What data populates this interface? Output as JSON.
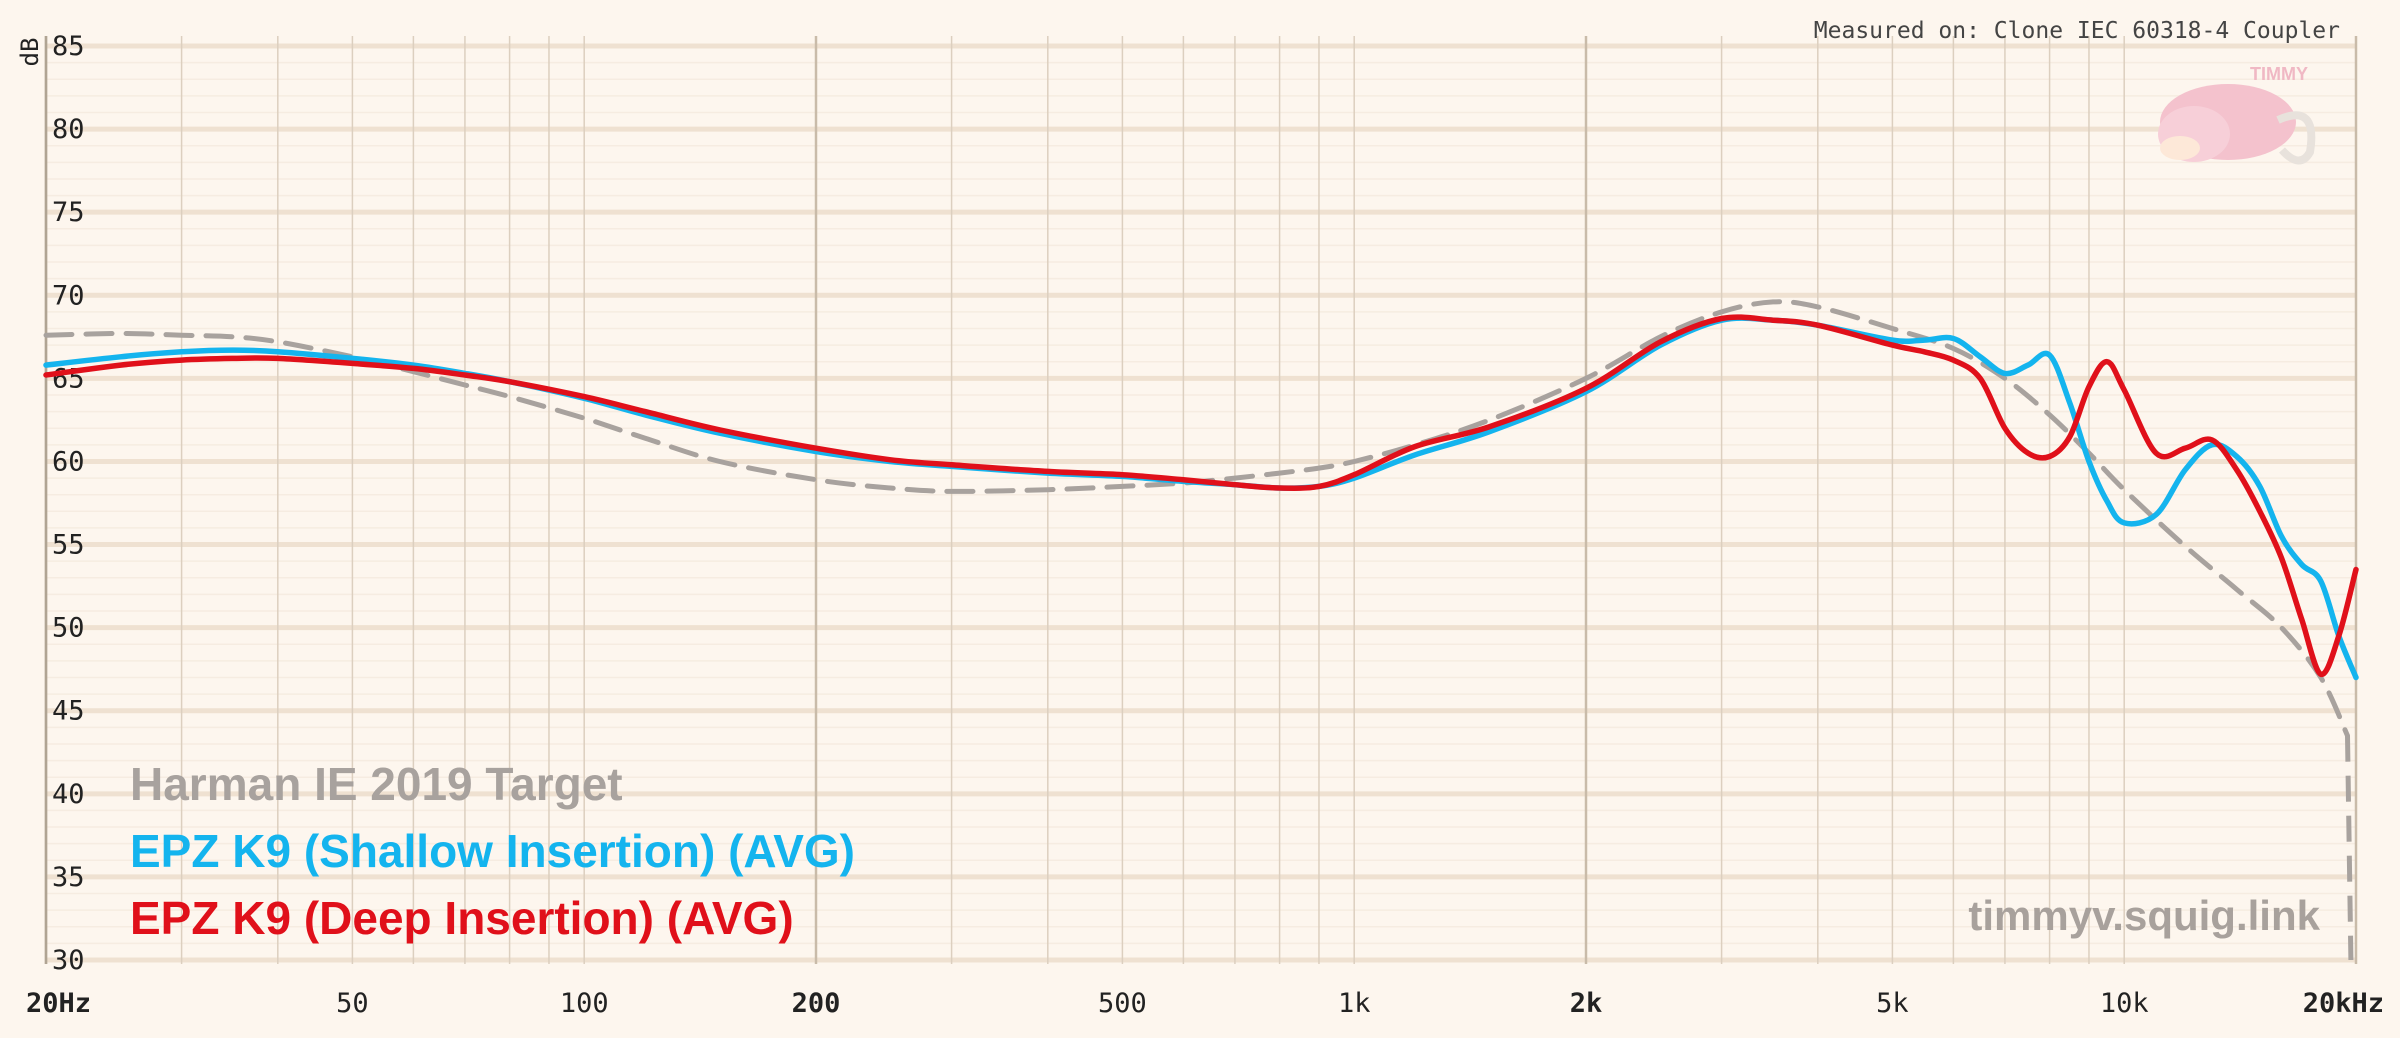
{
  "chart_data": {
    "type": "line",
    "ylabel": "dB",
    "ylim": [
      30,
      85
    ],
    "yticks": [
      "30",
      "35",
      "40",
      "45",
      "50",
      "55",
      "60",
      "65",
      "70",
      "75",
      "80",
      "85"
    ],
    "xscale": "log",
    "xlim": [
      20,
      20000
    ],
    "xticks": [
      {
        "value": 20,
        "label": "20Hz",
        "bold": true
      },
      {
        "value": 50,
        "label": "50",
        "bold": false
      },
      {
        "value": 100,
        "label": "100",
        "bold": false
      },
      {
        "value": 200,
        "label": "200",
        "bold": true
      },
      {
        "value": 500,
        "label": "500",
        "bold": false
      },
      {
        "value": 1000,
        "label": "1k",
        "bold": false
      },
      {
        "value": 2000,
        "label": "2k",
        "bold": true
      },
      {
        "value": 5000,
        "label": "5k",
        "bold": false
      },
      {
        "value": 10000,
        "label": "10k",
        "bold": false
      },
      {
        "value": 20000,
        "label": "20kHz",
        "bold": true
      }
    ],
    "grid": true,
    "measured_note": "Measured on: Clone IEC 60318-4 Coupler",
    "watermark": "timmyv.squig.link",
    "logo_text": "TIMMY",
    "series": [
      {
        "name": "Harman IE 2019 Target",
        "color": "#a8a29e",
        "dashed": true,
        "x": [
          20,
          25,
          30,
          35,
          40,
          50,
          60,
          70,
          80,
          100,
          120,
          150,
          200,
          250,
          300,
          400,
          500,
          600,
          700,
          800,
          900,
          1000,
          1200,
          1500,
          2000,
          2500,
          3000,
          3500,
          4000,
          5000,
          6000,
          7000,
          8000,
          9000,
          10000,
          12000,
          14000,
          16000,
          18000,
          19500
        ],
        "y": [
          67.6,
          67.7,
          67.6,
          67.5,
          67.2,
          66.3,
          65.4,
          64.6,
          63.9,
          62.6,
          61.4,
          60.0,
          58.9,
          58.4,
          58.2,
          58.3,
          58.5,
          58.7,
          59.0,
          59.3,
          59.6,
          60.0,
          61.0,
          62.5,
          65.0,
          67.5,
          69.0,
          69.6,
          69.3,
          68.0,
          66.8,
          65.0,
          62.8,
          60.5,
          58.3,
          54.9,
          52.3,
          50.0,
          47.0,
          43.5
        ]
      },
      {
        "name": "EPZ K9 (Shallow Insertion) (AVG)",
        "color": "#14b4ee",
        "dashed": false,
        "x": [
          20,
          25,
          30,
          35,
          40,
          50,
          60,
          70,
          80,
          100,
          120,
          150,
          200,
          250,
          300,
          400,
          500,
          600,
          700,
          800,
          900,
          1000,
          1200,
          1500,
          2000,
          2500,
          3000,
          3500,
          4000,
          5000,
          5500,
          6000,
          6500,
          7000,
          7500,
          8000,
          8500,
          9000,
          9500,
          10000,
          11000,
          12000,
          13000,
          14000,
          15000,
          16000,
          17000,
          18000,
          19000,
          20000
        ],
        "y": [
          65.8,
          66.3,
          66.6,
          66.7,
          66.6,
          66.2,
          65.8,
          65.3,
          64.8,
          63.8,
          62.8,
          61.7,
          60.6,
          60.0,
          59.7,
          59.3,
          59.1,
          58.8,
          58.6,
          58.4,
          58.5,
          59.0,
          60.4,
          61.8,
          64.2,
          67.0,
          68.5,
          68.5,
          68.2,
          67.3,
          67.3,
          67.4,
          66.3,
          65.3,
          65.8,
          66.4,
          63.5,
          60.0,
          57.6,
          56.3,
          56.8,
          59.5,
          61.0,
          60.3,
          58.5,
          55.5,
          53.8,
          52.8,
          49.5,
          47.0
        ]
      },
      {
        "name": "EPZ K9 (Deep Insertion) (AVG)",
        "color": "#e0101a",
        "dashed": false,
        "x": [
          20,
          25,
          30,
          35,
          40,
          50,
          60,
          70,
          80,
          100,
          120,
          150,
          200,
          250,
          300,
          400,
          500,
          600,
          700,
          800,
          900,
          1000,
          1200,
          1500,
          2000,
          2500,
          3000,
          3500,
          4000,
          5000,
          5500,
          6000,
          6500,
          7000,
          7500,
          8000,
          8500,
          9000,
          9500,
          10000,
          11000,
          12000,
          13000,
          14000,
          15000,
          16000,
          17000,
          18000,
          19000,
          20000
        ],
        "y": [
          65.2,
          65.8,
          66.1,
          66.2,
          66.2,
          65.9,
          65.6,
          65.2,
          64.8,
          63.9,
          63.0,
          61.9,
          60.8,
          60.1,
          59.8,
          59.4,
          59.2,
          58.9,
          58.6,
          58.4,
          58.5,
          59.2,
          60.9,
          62.1,
          64.4,
          67.2,
          68.6,
          68.5,
          68.2,
          67.0,
          66.6,
          66.1,
          65.0,
          62.0,
          60.5,
          60.3,
          61.5,
          64.5,
          66.0,
          64.3,
          60.5,
          60.8,
          61.3,
          59.5,
          57.0,
          54.2,
          50.5,
          47.2,
          49.5,
          53.5
        ]
      }
    ]
  }
}
